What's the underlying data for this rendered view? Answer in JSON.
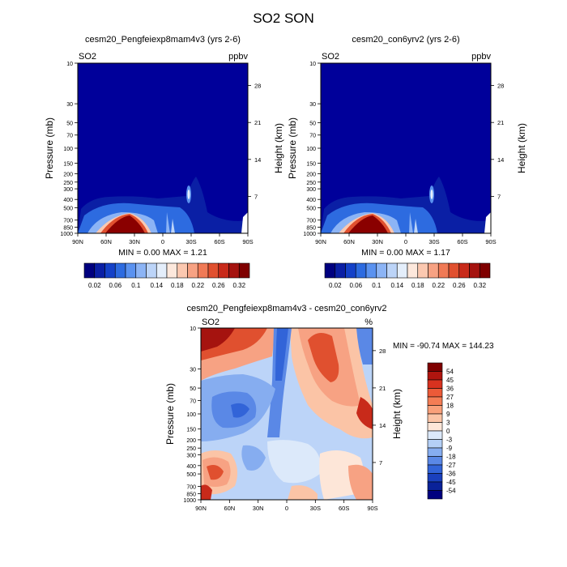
{
  "title": "SO2 SON",
  "panels": [
    {
      "title": "cesm20_Pengfeiexp8mam4v3 (yrs 2-6)",
      "left_label": "SO2",
      "right_label": "ppbv",
      "ylabel": "Pressure (mb)",
      "y2label": "Height (km)",
      "stats": "MIN =   0.00  MAX =   1.21"
    },
    {
      "title": "cesm20_con6yrv2 (yrs 2-6)",
      "left_label": "SO2",
      "right_label": "ppbv",
      "ylabel": "Pressure (mb)",
      "y2label": "Height (km)",
      "stats": "MIN =   0.00  MAX =   1.17"
    },
    {
      "title": "cesm20_Pengfeiexp8mam4v3 - cesm20_con6yrv2",
      "left_label": "SO2",
      "right_label": "%",
      "ylabel": "Pressure (mb)",
      "y2label": "Height (km)",
      "stats": "MIN = -90.74  MAX = 144.23"
    }
  ],
  "chart_data": [
    {
      "type": "heatmap",
      "title": "cesm20_Pengfeiexp8mam4v3 (yrs 2-6)",
      "variable": "SO2",
      "units": "ppbv",
      "xlabel": "",
      "ylabel": "Pressure (mb)",
      "y2label": "Height (km)",
      "x_ticks": [
        "90N",
        "60N",
        "30N",
        "0",
        "30S",
        "60S",
        "90S"
      ],
      "y_ticks": [
        "10",
        "30",
        "50",
        "70",
        "100",
        "150",
        "200",
        "250",
        "300",
        "400",
        "500",
        "700",
        "850",
        "1000"
      ],
      "y2_ticks": [
        "28",
        "21",
        "14",
        "7"
      ],
      "ylim": [
        1000,
        10
      ],
      "min": 0.0,
      "max": 1.21,
      "colorbar_levels": [
        "0.02",
        "0.06",
        "0.1",
        "0.14",
        "0.18",
        "0.22",
        "0.26",
        "0.32"
      ],
      "colors": [
        "#00007f",
        "#0a1fa5",
        "#1441c8",
        "#2d6be0",
        "#5a92f0",
        "#8cb4f5",
        "#bcd4f8",
        "#e4eefb",
        "#fde8dc",
        "#fbc8b0",
        "#f7a283",
        "#f07a56",
        "#e0502f",
        "#c82a1a",
        "#a5130f",
        "#7f0000"
      ]
    },
    {
      "type": "heatmap",
      "title": "cesm20_con6yrv2 (yrs 2-6)",
      "variable": "SO2",
      "units": "ppbv",
      "xlabel": "",
      "ylabel": "Pressure (mb)",
      "y2label": "Height (km)",
      "x_ticks": [
        "90N",
        "60N",
        "30N",
        "0",
        "30S",
        "60S",
        "90S"
      ],
      "y_ticks": [
        "10",
        "30",
        "50",
        "70",
        "100",
        "150",
        "200",
        "250",
        "300",
        "400",
        "500",
        "700",
        "850",
        "1000"
      ],
      "y2_ticks": [
        "28",
        "21",
        "14",
        "7"
      ],
      "ylim": [
        1000,
        10
      ],
      "min": 0.0,
      "max": 1.17,
      "colorbar_levels": [
        "0.02",
        "0.06",
        "0.1",
        "0.14",
        "0.18",
        "0.22",
        "0.26",
        "0.32"
      ]
    },
    {
      "type": "heatmap",
      "title": "cesm20_Pengfeiexp8mam4v3 - cesm20_con6yrv2",
      "variable": "SO2",
      "units": "%",
      "xlabel": "",
      "ylabel": "Pressure (mb)",
      "y2label": "Height (km)",
      "x_ticks": [
        "90N",
        "60N",
        "30N",
        "0",
        "30S",
        "60S",
        "90S"
      ],
      "y_ticks": [
        "10",
        "30",
        "50",
        "70",
        "100",
        "150",
        "200",
        "250",
        "300",
        "400",
        "500",
        "700",
        "850",
        "1000"
      ],
      "y2_ticks": [
        "28",
        "21",
        "14",
        "7"
      ],
      "ylim": [
        1000,
        10
      ],
      "min": -90.74,
      "max": 144.23,
      "colorbar_levels": [
        "54",
        "45",
        "36",
        "27",
        "18",
        "9",
        "3",
        "0",
        "-3",
        "-9",
        "-18",
        "-27",
        "-36",
        "-45",
        "-54"
      ],
      "colors": [
        "#7f0000",
        "#b0150f",
        "#d8321f",
        "#ec5a38",
        "#f47d55",
        "#f9a07a",
        "#fbc4a6",
        "#fde6d8",
        "#dce9fa",
        "#b4cff6",
        "#86adf0",
        "#5a88e6",
        "#3264d8",
        "#1a40bd",
        "#0a2299",
        "#00007f"
      ]
    }
  ]
}
